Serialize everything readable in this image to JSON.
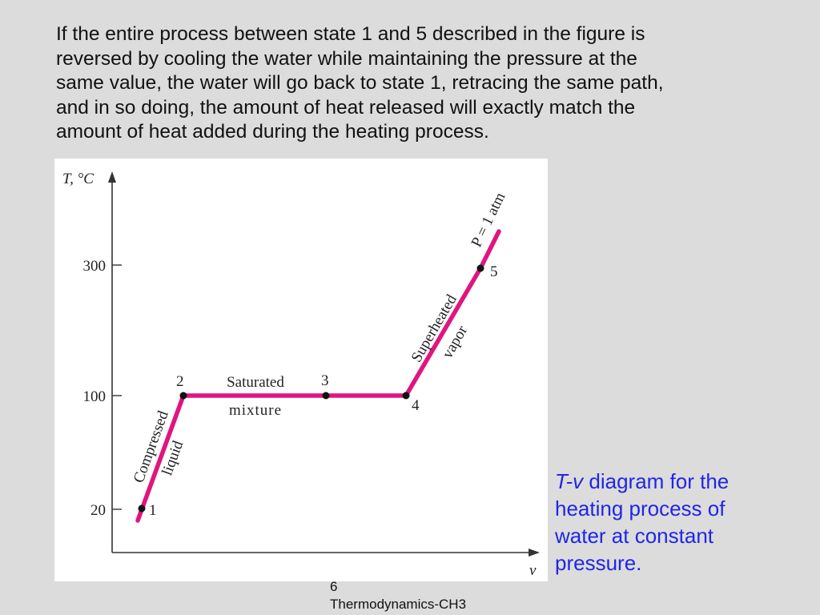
{
  "paragraph": {
    "lines": [
      "If the entire process between state 1 and 5 described in the figure is",
      "reversed by cooling the water while maintaining the pressure at the",
      "same value, the water will go back to state 1, retracing the same path,",
      "and in so doing, the amount of heat released will exactly match the",
      "amount of heat added during the heating process."
    ]
  },
  "diagram": {
    "y_axis_label": "T, °C",
    "x_axis_label": "v",
    "ticks": [
      "300",
      "100",
      "20"
    ],
    "states": [
      "1",
      "2",
      "3",
      "4",
      "5"
    ],
    "region_compressed_1": "Compressed",
    "region_compressed_2": "liquid",
    "region_saturated_1": "Saturated",
    "region_saturated_2": "mixture",
    "region_superheated_1": "Superheated",
    "region_superheated_2": "vapor",
    "pressure_label": "P = 1 atm",
    "line_color": "#e0157f"
  },
  "caption": {
    "italic": "T-v",
    "line1_rest": " diagram for the",
    "line2": "heating process of",
    "line3": "water at constant",
    "line4": "pressure."
  },
  "footer": {
    "page_number": "6",
    "course": "Thermodynamics-CH3"
  }
}
